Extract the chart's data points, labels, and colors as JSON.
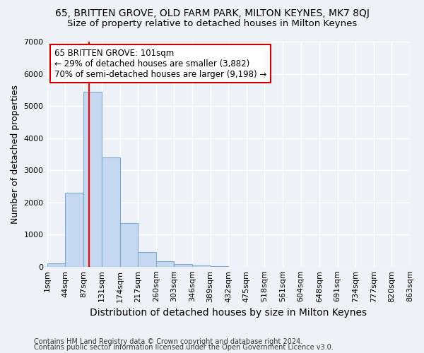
{
  "title1": "65, BRITTEN GROVE, OLD FARM PARK, MILTON KEYNES, MK7 8QJ",
  "title2": "Size of property relative to detached houses in Milton Keynes",
  "xlabel": "Distribution of detached houses by size in Milton Keynes",
  "ylabel": "Number of detached properties",
  "bin_edges": [
    1,
    44,
    87,
    131,
    174,
    217,
    260,
    303,
    346,
    389,
    432,
    475,
    518,
    561,
    604,
    648,
    691,
    734,
    777,
    820,
    863
  ],
  "bar_heights": [
    100,
    2300,
    5450,
    3400,
    1350,
    450,
    175,
    80,
    30,
    10,
    0,
    0,
    0,
    0,
    0,
    0,
    0,
    0,
    0,
    0
  ],
  "bar_color": "#c5d8ef",
  "bar_edge_color": "#7aadd4",
  "red_line_x": 101,
  "annotation_line1": "65 BRITTEN GROVE: 101sqm",
  "annotation_line2": "← 29% of detached houses are smaller (3,882)",
  "annotation_line3": "70% of semi-detached houses are larger (9,198) →",
  "annotation_box_color": "#ffffff",
  "annotation_box_edge": "#cc0000",
  "ylim": [
    0,
    7000
  ],
  "yticks": [
    0,
    1000,
    2000,
    3000,
    4000,
    5000,
    6000,
    7000
  ],
  "footnote1": "Contains HM Land Registry data © Crown copyright and database right 2024.",
  "footnote2": "Contains public sector information licensed under the Open Government Licence v3.0.",
  "bg_color": "#eef2f8",
  "plot_bg_color": "#eef2f8",
  "grid_color": "#ffffff",
  "title1_fontsize": 10,
  "title2_fontsize": 9.5,
  "axis_label_fontsize": 9,
  "tick_fontsize": 8,
  "footnote_fontsize": 7,
  "annotation_fontsize": 8.5
}
